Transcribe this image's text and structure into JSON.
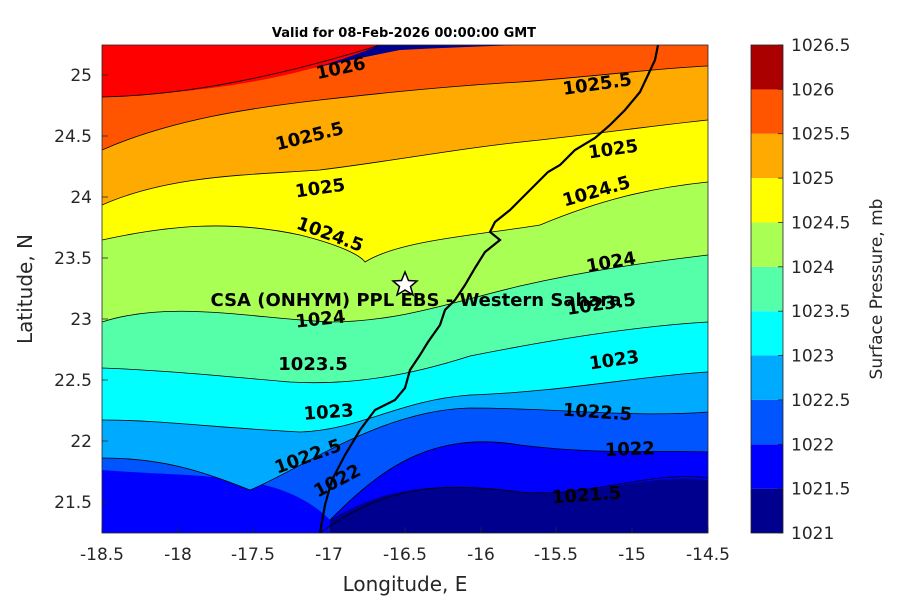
{
  "title": "Valid for 08-Feb-2026 00:00:00 GMT",
  "map": {
    "xlabel": "Longitude, E",
    "ylabel": "Latitude, N",
    "xlim": [
      -18.5,
      -14.5
    ],
    "ylim": [
      21.25,
      25.25
    ],
    "xticks": [
      "-18.5",
      "-18",
      "-17.5",
      "-17",
      "-16.5",
      "-16",
      "-15.5",
      "-15",
      "-14.5"
    ],
    "yticks": [
      "21.5",
      "22",
      "22.5",
      "23",
      "23.5",
      "24",
      "24.5",
      "25"
    ],
    "site_label": "CSA (ONHYM) PPL EBS  - Western Sahara",
    "site_marker": {
      "lon": -16.5,
      "lat": 23.3,
      "icon": "star-icon"
    },
    "contour_labels": [
      "1026",
      "1025.5",
      "1025.5",
      "1025",
      "1025",
      "1024.5",
      "1024.5",
      "1024",
      "1024",
      "1023.5",
      "1023.5",
      "1023",
      "1023",
      "1022.5",
      "1022.5",
      "1022",
      "1022",
      "1021.5"
    ]
  },
  "colorbar": {
    "label": "Surface Pressure, mb",
    "levels": [
      "1021",
      "1021.5",
      "1022",
      "1022.5",
      "1023",
      "1023.5",
      "1024",
      "1024.5",
      "1025",
      "1025.5",
      "1026",
      "1026.5"
    ],
    "colors": [
      "#00008f",
      "#0000ff",
      "#0055ff",
      "#00aaff",
      "#00ffff",
      "#55ffaa",
      "#aaff55",
      "#ffff00",
      "#ffaa00",
      "#ff5500",
      "#ff0000",
      "#aa0000"
    ]
  }
}
